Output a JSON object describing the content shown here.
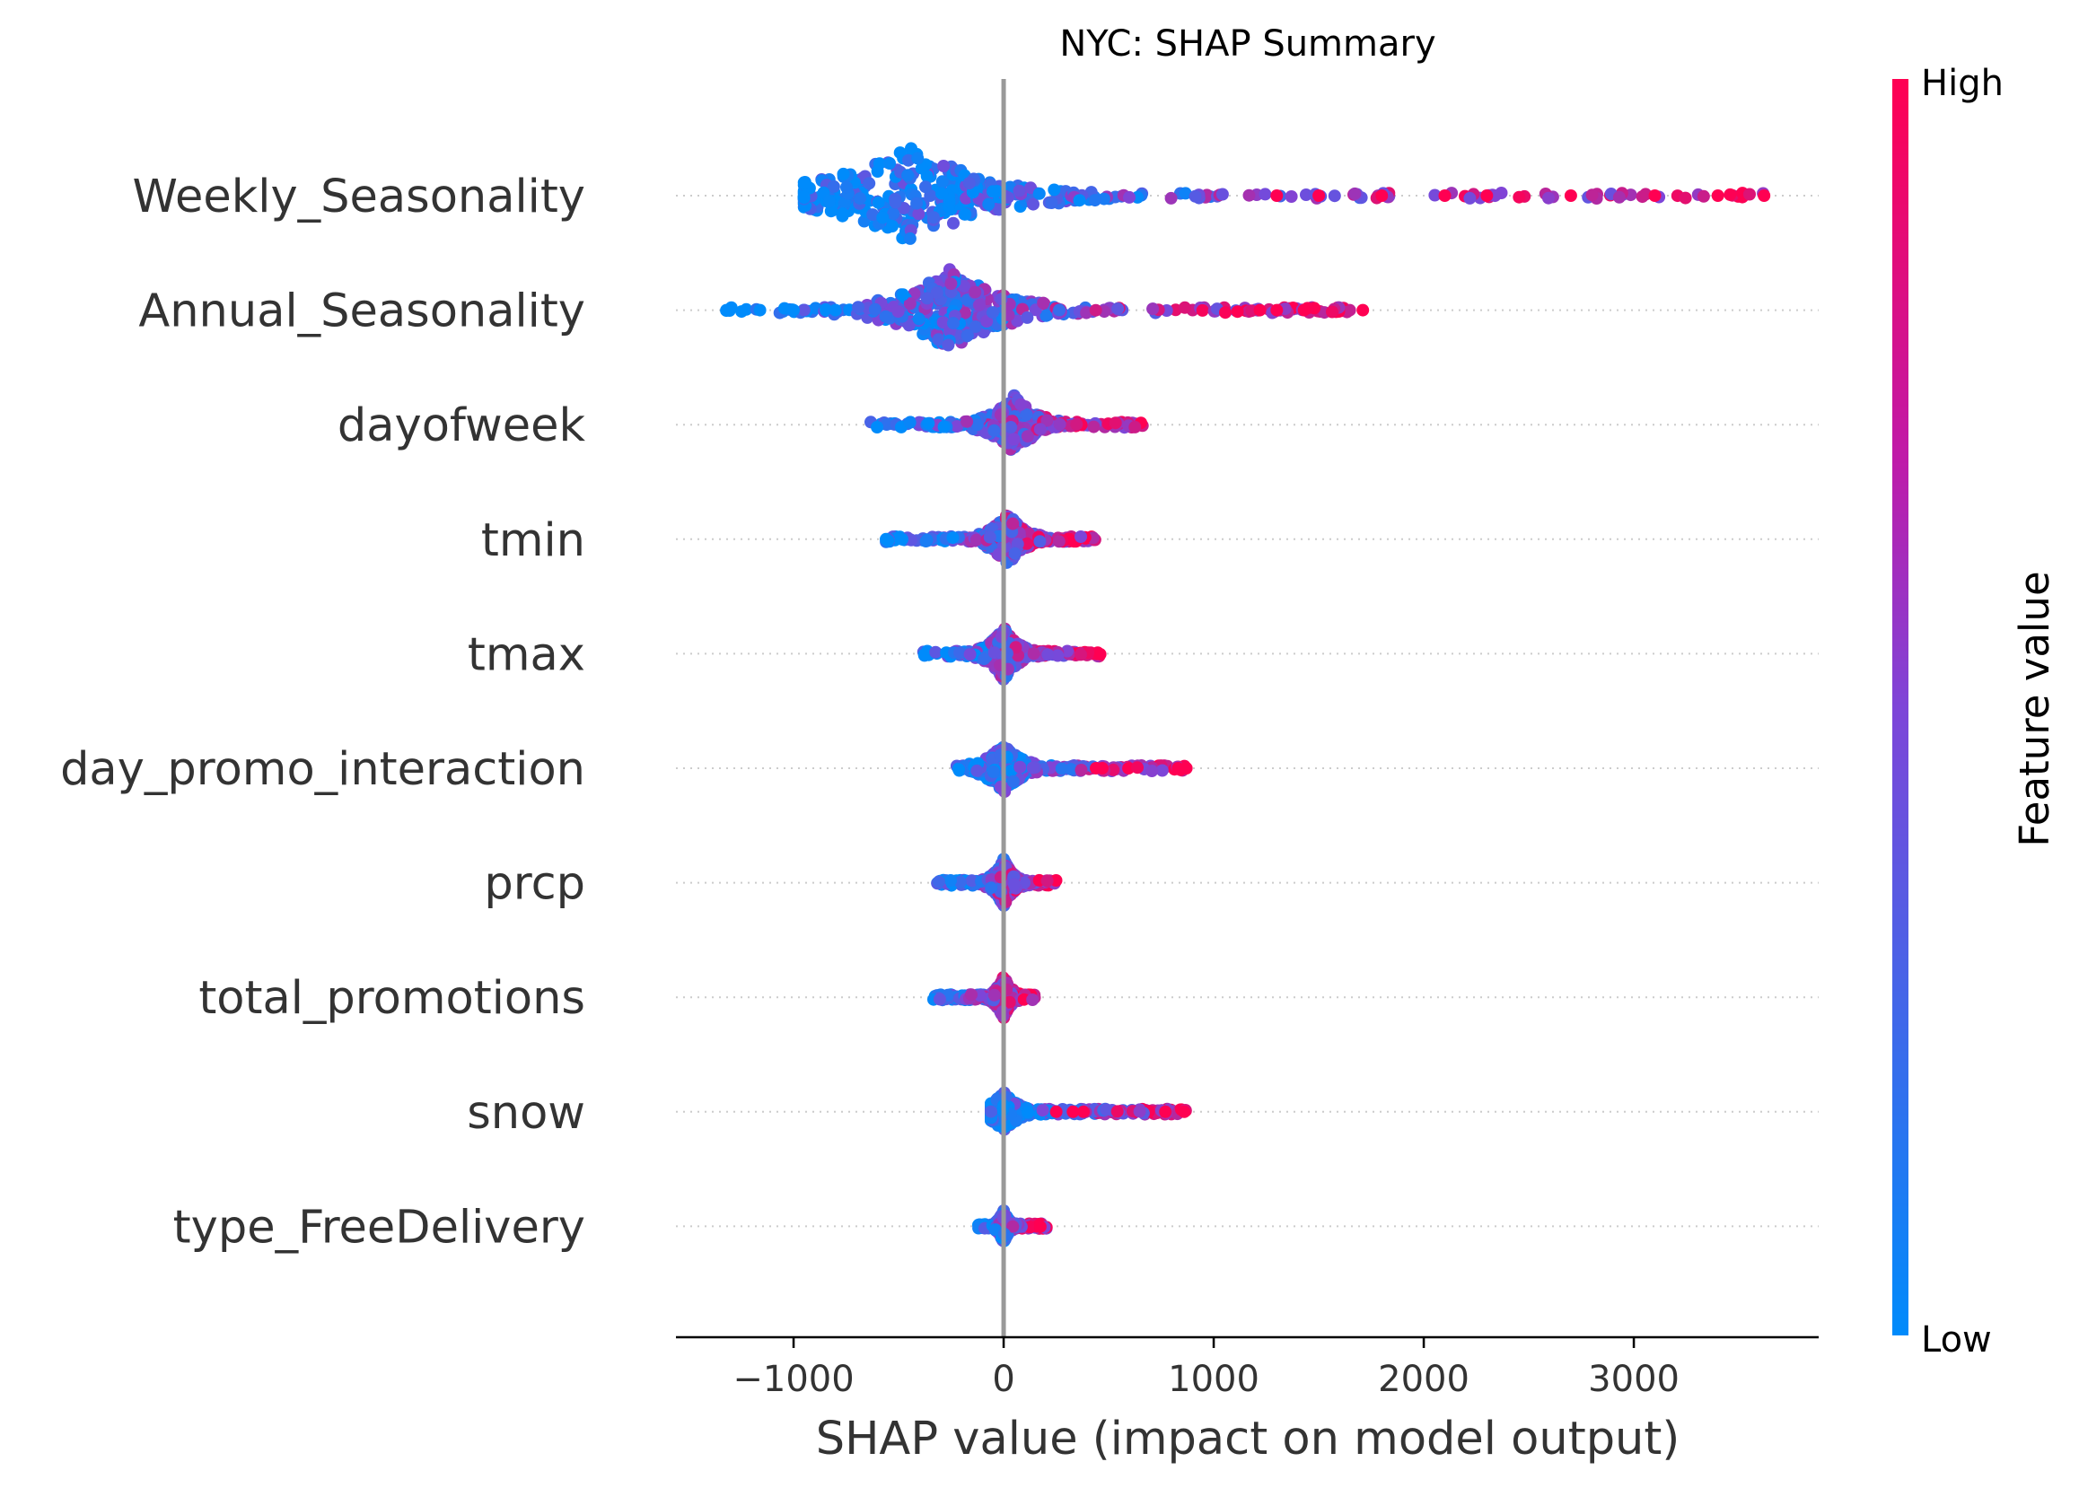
{
  "chart_data": {
    "type": "scatter",
    "subtype": "beeswarm",
    "title": "NYC: SHAP Summary",
    "xlabel": "SHAP value (impact on model output)",
    "ylabel": "",
    "xlim": [
      -1560,
      3880
    ],
    "xticks": [
      {
        "value": -1000,
        "label": "−1000"
      },
      {
        "value": 0,
        "label": "0"
      },
      {
        "value": 1000,
        "label": "1000"
      },
      {
        "value": 2000,
        "label": "2000"
      },
      {
        "value": 3000,
        "label": "3000"
      }
    ],
    "zero_line": 0,
    "colorbar": {
      "title": "Feature value",
      "high_label": "High",
      "low_label": "Low",
      "high_color": "#ff0052",
      "low_color": "#008bfb"
    },
    "features": [
      {
        "name": "Weekly_Seasonality",
        "min": -950,
        "max": 3620,
        "median": -450,
        "spread": 1.0,
        "outliers": [
          [
            1300,
            1
          ],
          [
            1500,
            1
          ],
          [
            1800,
            1
          ],
          [
            2100,
            1
          ],
          [
            2300,
            1
          ],
          [
            2700,
            1
          ],
          [
            3100,
            1
          ],
          [
            3400,
            1
          ],
          [
            3620,
            1
          ]
        ]
      },
      {
        "name": "Annual_Seasonality",
        "min": -1320,
        "max": 1710,
        "median": -250,
        "spread": 0.85,
        "outliers": [
          [
            -1320,
            0
          ],
          [
            -1160,
            0
          ],
          [
            -1000,
            0
          ],
          [
            -800,
            0
          ],
          [
            1220,
            1
          ],
          [
            1300,
            1
          ],
          [
            1430,
            1
          ],
          [
            1710,
            1
          ]
        ]
      },
      {
        "name": "dayofweek",
        "min": -640,
        "max": 670,
        "median": 50,
        "spread": 0.6,
        "outliers": []
      },
      {
        "name": "tmin",
        "min": -560,
        "max": 440,
        "median": 20,
        "spread": 0.55,
        "outliers": [
          [
            -560,
            0
          ]
        ]
      },
      {
        "name": "tmax",
        "min": -390,
        "max": 460,
        "median": 0,
        "spread": 0.55,
        "outliers": []
      },
      {
        "name": "day_promo_interaction",
        "min": -230,
        "max": 870,
        "median": 0,
        "spread": 0.5,
        "outliers": [
          [
            440,
            1
          ],
          [
            470,
            1
          ],
          [
            830,
            1
          ],
          [
            870,
            1
          ]
        ]
      },
      {
        "name": "prcp",
        "min": -330,
        "max": 260,
        "median": 0,
        "spread": 0.5,
        "outliers": []
      },
      {
        "name": "total_promotions",
        "min": -340,
        "max": 150,
        "median": 0,
        "spread": 0.45,
        "outliers": []
      },
      {
        "name": "snow",
        "min": -60,
        "max": 870,
        "median": 0,
        "spread": 0.4,
        "outliers": [
          [
            250,
            1
          ],
          [
            330,
            1
          ],
          [
            380,
            1
          ],
          [
            770,
            1
          ],
          [
            860,
            1
          ]
        ]
      },
      {
        "name": "type_FreeDelivery",
        "min": -120,
        "max": 210,
        "median": 0,
        "spread": 0.35,
        "outliers": []
      }
    ]
  }
}
